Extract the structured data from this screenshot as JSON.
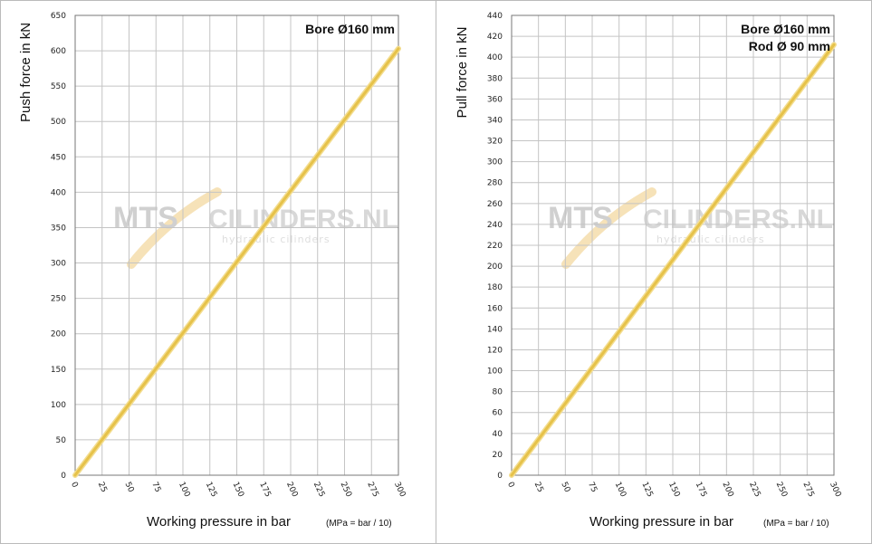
{
  "chart_data": [
    {
      "type": "line",
      "annotations": [
        "Bore Ø160 mm"
      ],
      "ylabel": "Push force in kN",
      "xlabel": "Working pressure in bar",
      "xlabel_note": "(MPa = bar / 10)",
      "watermark": [
        "MTS",
        "CILINDERS.NL",
        "hydraulic cilinders"
      ],
      "x": [
        0,
        300
      ],
      "values": [
        0,
        603
      ],
      "color": "#e6c24a",
      "xlim": [
        0,
        300
      ],
      "xticks": [
        0,
        25,
        50,
        75,
        100,
        125,
        150,
        175,
        200,
        225,
        250,
        275,
        300
      ],
      "ylim": [
        0,
        650
      ],
      "yticks": [
        0,
        50,
        100,
        150,
        200,
        250,
        300,
        350,
        400,
        450,
        500,
        550,
        600,
        650
      ],
      "grid": true
    },
    {
      "type": "line",
      "annotations": [
        "Bore Ø160 mm",
        "Rod Ø  90 mm"
      ],
      "ylabel": "Pull force in kN",
      "xlabel": "Working pressure in bar",
      "xlabel_note": "(MPa = bar / 10)",
      "watermark": [
        "MTS",
        "CILINDERS.NL",
        "hydraulic cilinders"
      ],
      "x": [
        0,
        300
      ],
      "values": [
        0,
        412
      ],
      "color": "#e6c24a",
      "xlim": [
        0,
        300
      ],
      "xticks": [
        0,
        25,
        50,
        75,
        100,
        125,
        150,
        175,
        200,
        225,
        250,
        275,
        300
      ],
      "ylim": [
        0,
        440
      ],
      "yticks": [
        0,
        20,
        40,
        60,
        80,
        100,
        120,
        140,
        160,
        180,
        200,
        220,
        240,
        260,
        280,
        300,
        320,
        340,
        360,
        380,
        400,
        420,
        440
      ],
      "grid": true
    }
  ]
}
